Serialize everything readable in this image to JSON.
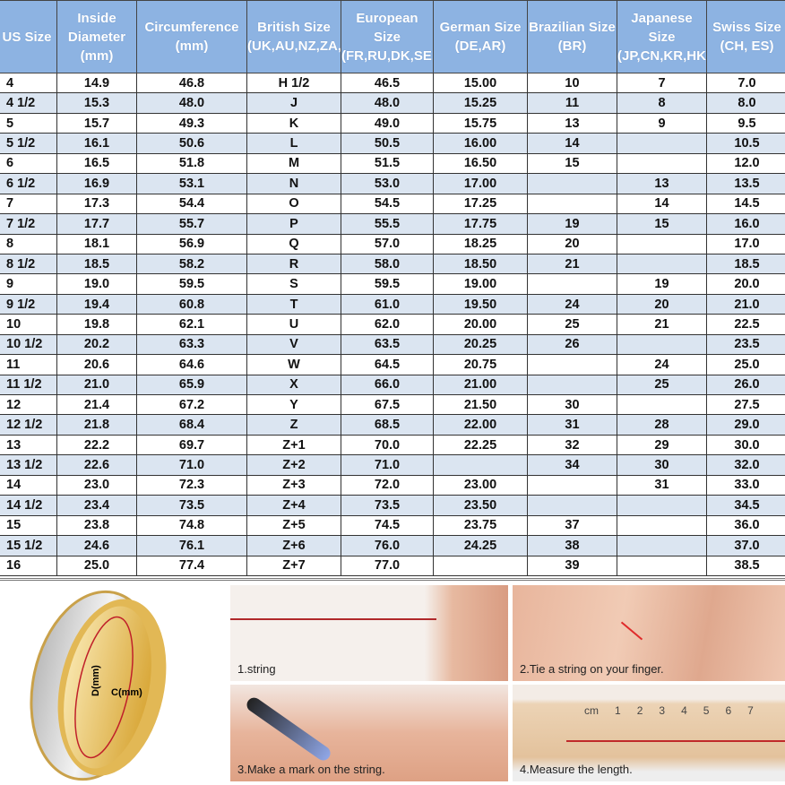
{
  "headers": [
    "US Size",
    "Inside Diameter (mm)",
    "Circumference (mm)",
    "British Size (UK,AU,NZ,ZA,IE)",
    "European Size (FR,RU,DK,SE,NO,FI)",
    "German Size (DE,AR)",
    "Brazilian Size (BR)",
    "Japanese Size (JP,CN,KR,HK,TW,SG)",
    "Swiss Size (CH, ES)"
  ],
  "rows": [
    [
      "4",
      "14.9",
      "46.8",
      "H 1/2",
      "46.5",
      "15.00",
      "10",
      "7",
      "7.0"
    ],
    [
      "4 1/2",
      "15.3",
      "48.0",
      "J",
      "48.0",
      "15.25",
      "11",
      "8",
      "8.0"
    ],
    [
      "5",
      "15.7",
      "49.3",
      "K",
      "49.0",
      "15.75",
      "13",
      "9",
      "9.5"
    ],
    [
      "5 1/2",
      "16.1",
      "50.6",
      "L",
      "50.5",
      "16.00",
      "14",
      "",
      "10.5"
    ],
    [
      "6",
      "16.5",
      "51.8",
      "M",
      "51.5",
      "16.50",
      "15",
      "",
      "12.0"
    ],
    [
      "6 1/2",
      "16.9",
      "53.1",
      "N",
      "53.0",
      "17.00",
      "",
      "13",
      "13.5"
    ],
    [
      "7",
      "17.3",
      "54.4",
      "O",
      "54.5",
      "17.25",
      "",
      "14",
      "14.5"
    ],
    [
      "7 1/2",
      "17.7",
      "55.7",
      "P",
      "55.5",
      "17.75",
      "19",
      "15",
      "16.0"
    ],
    [
      "8",
      "18.1",
      "56.9",
      "Q",
      "57.0",
      "18.25",
      "20",
      "",
      "17.0"
    ],
    [
      "8 1/2",
      "18.5",
      "58.2",
      "R",
      "58.0",
      "18.50",
      "21",
      "",
      "18.5"
    ],
    [
      "9",
      "19.0",
      "59.5",
      "S",
      "59.5",
      "19.00",
      "",
      "19",
      "20.0"
    ],
    [
      "9 1/2",
      "19.4",
      "60.8",
      "T",
      "61.0",
      "19.50",
      "24",
      "20",
      "21.0"
    ],
    [
      "10",
      "19.8",
      "62.1",
      "U",
      "62.0",
      "20.00",
      "25",
      "21",
      "22.5"
    ],
    [
      "10 1/2",
      "20.2",
      "63.3",
      "V",
      "63.5",
      "20.25",
      "26",
      "",
      "23.5"
    ],
    [
      "11",
      "20.6",
      "64.6",
      "W",
      "64.5",
      "20.75",
      "",
      "24",
      "25.0"
    ],
    [
      "11 1/2",
      "21.0",
      "65.9",
      "X",
      "66.0",
      "21.00",
      "",
      "25",
      "26.0"
    ],
    [
      "12",
      "21.4",
      "67.2",
      "Y",
      "67.5",
      "21.50",
      "30",
      "",
      "27.5"
    ],
    [
      "12 1/2",
      "21.8",
      "68.4",
      "Z",
      "68.5",
      "22.00",
      "31",
      "28",
      "29.0"
    ],
    [
      "13",
      "22.2",
      "69.7",
      "Z+1",
      "70.0",
      "22.25",
      "32",
      "29",
      "30.0"
    ],
    [
      "13 1/2",
      "22.6",
      "71.0",
      "Z+2",
      "71.0",
      "",
      "34",
      "30",
      "32.0"
    ],
    [
      "14",
      "23.0",
      "72.3",
      "Z+3",
      "72.0",
      "23.00",
      "",
      "31",
      "33.0"
    ],
    [
      "14 1/2",
      "23.4",
      "73.5",
      "Z+4",
      "73.5",
      "23.50",
      "",
      "",
      "34.5"
    ],
    [
      "15",
      "23.8",
      "74.8",
      "Z+5",
      "74.5",
      "23.75",
      "37",
      "",
      "36.0"
    ],
    [
      "15 1/2",
      "24.6",
      "76.1",
      "Z+6",
      "76.0",
      "24.25",
      "38",
      "",
      "37.0"
    ],
    [
      "16",
      "25.0",
      "77.4",
      "Z+7",
      "77.0",
      "",
      "39",
      "",
      "38.5"
    ]
  ],
  "ring": {
    "diameter_label": "D(mm)",
    "circumference_label": "C(mm)"
  },
  "steps": [
    "1.string",
    "2.Tie a string on your finger.",
    "3.Make a mark on the string.",
    "4.Measure the length."
  ],
  "ruler": {
    "unit": "cm",
    "ticks": [
      "1",
      "2",
      "3",
      "4",
      "5",
      "6",
      "7"
    ]
  },
  "colors": {
    "header": "#8db3e2",
    "band": "#dbe5f1",
    "string": "#d42a2a"
  }
}
